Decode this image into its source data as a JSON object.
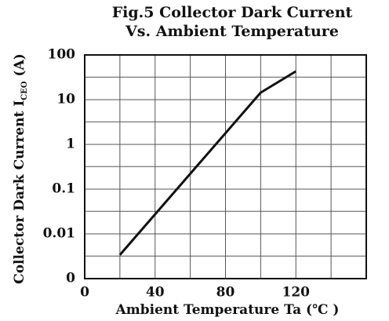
{
  "chart_data": {
    "type": "line",
    "title": [
      "Fig.5 Collector Dark Current",
      "Vs. Ambient Temperature"
    ],
    "xlabel": "Ambient Temperature Ta (℃ )",
    "ylabel": [
      "Collector  Dark Current  I",
      "CEO",
      " (A)"
    ],
    "x": [
      20,
      100,
      120
    ],
    "series": [
      {
        "color": "#111111",
        "values": [
          0.0034,
          14.4,
          43
        ]
      }
    ],
    "xlim": [
      0,
      160
    ],
    "xticks": [
      0,
      40,
      80,
      120
    ],
    "x_minor_ticks": [
      20,
      60,
      100,
      140,
      160
    ],
    "ylim": [
      0.001,
      100
    ],
    "ylog": true,
    "yticks": [
      {
        "value": 0.001,
        "label": "0"
      },
      0.01,
      0.1,
      1,
      10,
      100
    ],
    "y_minor_ticks": [
      0.0032,
      0.032,
      0.32,
      3.2,
      32
    ],
    "grid": true
  }
}
